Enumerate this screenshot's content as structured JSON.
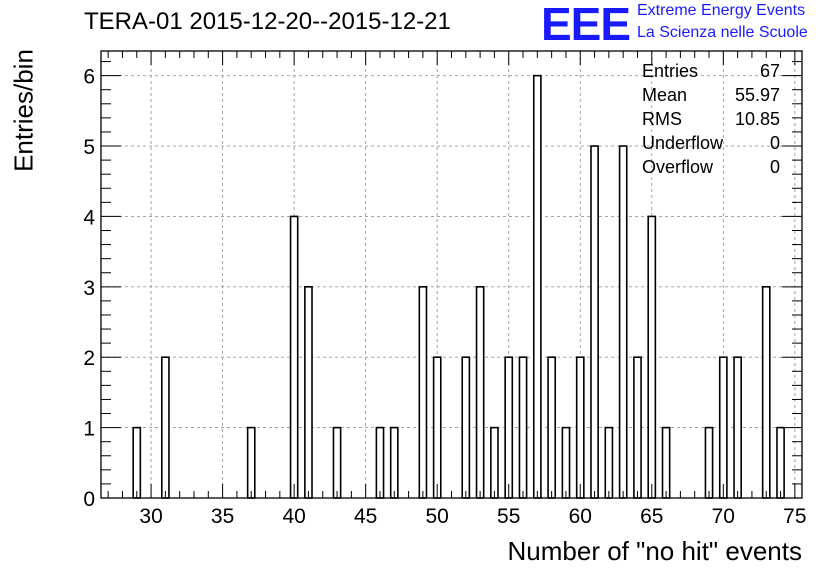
{
  "title": "TERA-01 2015-12-20--2015-12-21",
  "logo": {
    "mark": "EEE",
    "line1": "Extreme Energy Events",
    "line2": "La Scienza nelle Scuole",
    "color": "#1a1aff"
  },
  "stats": [
    {
      "label": "Entries",
      "value": "67"
    },
    {
      "label": "Mean",
      "value": "55.97"
    },
    {
      "label": "RMS",
      "value": "10.85"
    },
    {
      "label": "Underflow",
      "value": "0"
    },
    {
      "label": "Overflow",
      "value": "0"
    }
  ],
  "chart_data": {
    "type": "bar",
    "title": "TERA-01 2015-12-20--2015-12-21",
    "xlabel": "Number of \"no hit\" events",
    "ylabel": "Entries/bin",
    "xlim": [
      26.5,
      75.5
    ],
    "ylim": [
      0,
      6.35
    ],
    "bin_width": 0.5,
    "grid": true,
    "stats_box_position": "top-right",
    "x_ticks": [
      30,
      35,
      40,
      45,
      50,
      55,
      60,
      65,
      70,
      75
    ],
    "y_ticks": [
      0,
      1,
      2,
      3,
      4,
      5,
      6
    ],
    "bins": [
      {
        "x": 29,
        "count": 1
      },
      {
        "x": 31,
        "count": 2
      },
      {
        "x": 37,
        "count": 1
      },
      {
        "x": 40,
        "count": 4
      },
      {
        "x": 41,
        "count": 3
      },
      {
        "x": 43,
        "count": 1
      },
      {
        "x": 46,
        "count": 1
      },
      {
        "x": 47,
        "count": 1
      },
      {
        "x": 49,
        "count": 3
      },
      {
        "x": 50,
        "count": 2
      },
      {
        "x": 52,
        "count": 2
      },
      {
        "x": 53,
        "count": 3
      },
      {
        "x": 54,
        "count": 1
      },
      {
        "x": 55,
        "count": 2
      },
      {
        "x": 56,
        "count": 2
      },
      {
        "x": 57,
        "count": 6
      },
      {
        "x": 58,
        "count": 2
      },
      {
        "x": 59,
        "count": 1
      },
      {
        "x": 60,
        "count": 2
      },
      {
        "x": 61,
        "count": 5
      },
      {
        "x": 62,
        "count": 1
      },
      {
        "x": 63,
        "count": 5
      },
      {
        "x": 64,
        "count": 2
      },
      {
        "x": 65,
        "count": 4
      },
      {
        "x": 66,
        "count": 1
      },
      {
        "x": 69,
        "count": 1
      },
      {
        "x": 70,
        "count": 2
      },
      {
        "x": 71,
        "count": 2
      },
      {
        "x": 73,
        "count": 3
      },
      {
        "x": 74,
        "count": 1
      }
    ]
  }
}
